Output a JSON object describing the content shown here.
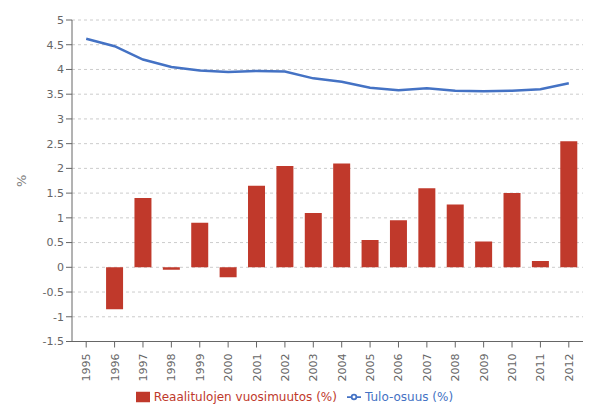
{
  "chart_data": {
    "type": "bar",
    "ylabel": "%",
    "categories": [
      "1995",
      "1996",
      "1997",
      "1998",
      "1999",
      "2000",
      "2001",
      "2002",
      "2003",
      "2004",
      "2005",
      "2006",
      "2007",
      "2008",
      "2009",
      "2010",
      "2011",
      "2012"
    ],
    "series": [
      {
        "name": "Reaalitulojen vuosimuutos (%)",
        "type": "bar",
        "color": "#c0392b",
        "values": [
          0.0,
          -0.85,
          1.4,
          -0.05,
          0.9,
          -0.2,
          1.65,
          2.05,
          1.1,
          2.1,
          0.55,
          0.95,
          1.6,
          1.27,
          0.52,
          1.5,
          0.13,
          2.55
        ]
      },
      {
        "name": "Tulo-osuus (%)",
        "type": "line",
        "color": "#4472c4",
        "values": [
          4.62,
          4.47,
          4.2,
          4.05,
          3.98,
          3.95,
          3.97,
          3.96,
          3.82,
          3.75,
          3.63,
          3.58,
          3.62,
          3.57,
          3.56,
          3.57,
          3.6,
          3.72
        ]
      }
    ],
    "ylim": [
      -1.5,
      5.0
    ],
    "yticks": [
      -1.5,
      -1.0,
      -0.5,
      0.0,
      0.5,
      1.0,
      1.5,
      2.0,
      2.5,
      3.0,
      3.5,
      4.0,
      4.5,
      5.0
    ],
    "grid": true,
    "legend": "bottom"
  }
}
